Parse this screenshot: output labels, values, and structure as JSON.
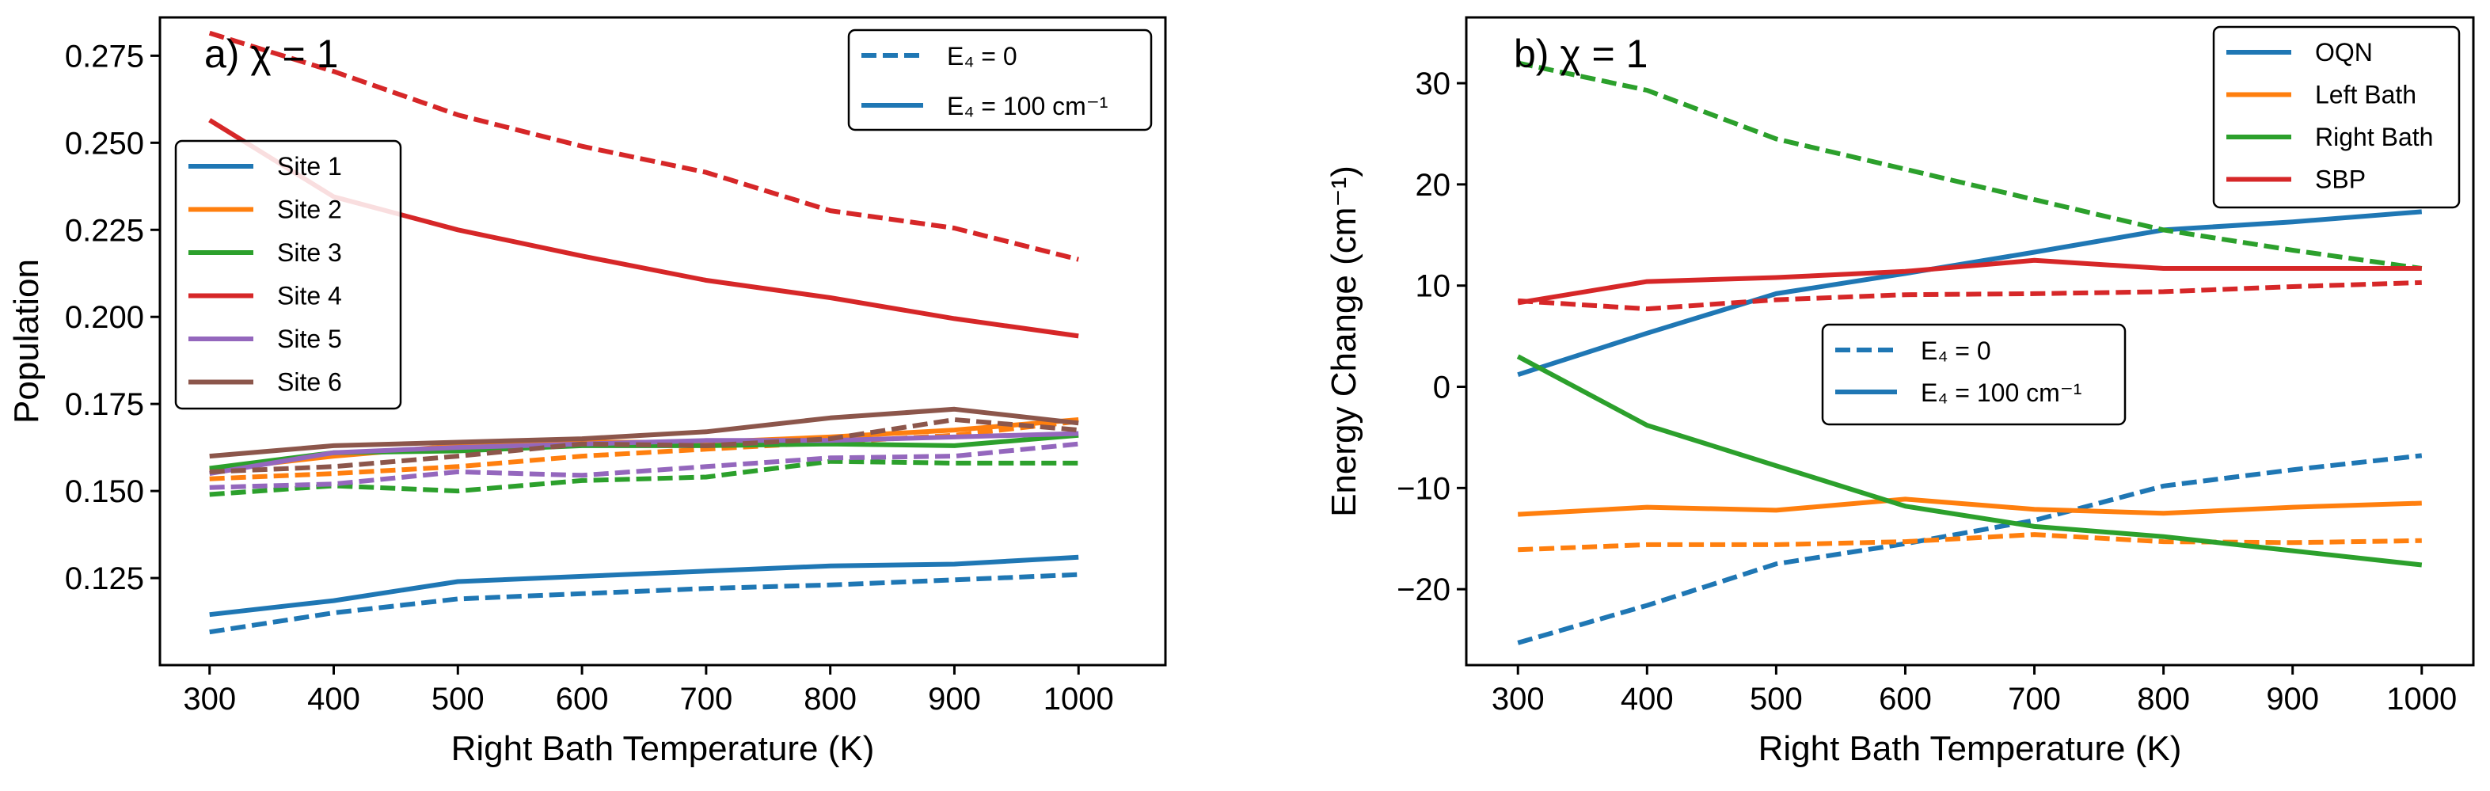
{
  "chart_data": [
    {
      "id": "a",
      "type": "line",
      "panel_title": "a) χ = 1",
      "xlabel": "Right Bath Temperature (K)",
      "ylabel": "Population",
      "xlim": [
        260,
        1070
      ],
      "ylim": [
        0.1,
        0.286
      ],
      "xticks": [
        300,
        400,
        500,
        600,
        700,
        800,
        900,
        1000
      ],
      "yticks": [
        0.125,
        0.15,
        0.175,
        0.2,
        0.225,
        0.25,
        0.275
      ],
      "ytick_labels": [
        "0.125",
        "0.150",
        "0.175",
        "0.200",
        "0.225",
        "0.250",
        "0.275"
      ],
      "x": [
        300,
        400,
        500,
        600,
        700,
        800,
        900,
        1000
      ],
      "series": [
        {
          "name": "Site 1",
          "color": "#1f77b4",
          "solid": [
            0.1145,
            0.1185,
            0.124,
            0.1255,
            0.127,
            0.1285,
            0.129,
            0.131
          ],
          "dashed": [
            0.1095,
            0.115,
            0.119,
            0.1205,
            0.122,
            0.123,
            0.1245,
            0.126
          ]
        },
        {
          "name": "Site 2",
          "color": "#ff7f0e",
          "solid": [
            0.156,
            0.16,
            0.163,
            0.164,
            0.164,
            0.1655,
            0.1675,
            0.1705
          ],
          "dashed": [
            0.1535,
            0.155,
            0.157,
            0.16,
            0.162,
            0.164,
            0.166,
            0.17
          ]
        },
        {
          "name": "Site 3",
          "color": "#2ca02c",
          "solid": [
            0.1565,
            0.161,
            0.1615,
            0.163,
            0.163,
            0.1635,
            0.163,
            0.166
          ],
          "dashed": [
            0.149,
            0.1515,
            0.15,
            0.153,
            0.154,
            0.1585,
            0.158,
            0.158
          ]
        },
        {
          "name": "Site 4",
          "color": "#d62728",
          "solid": [
            0.2565,
            0.2345,
            0.225,
            0.2175,
            0.2105,
            0.2055,
            0.1995,
            0.1945
          ],
          "dashed": [
            0.2815,
            0.2705,
            0.258,
            0.249,
            0.2415,
            0.2305,
            0.2255,
            0.2165
          ]
        },
        {
          "name": "Site 5",
          "color": "#9467bd",
          "solid": [
            0.155,
            0.161,
            0.1625,
            0.1635,
            0.1645,
            0.1645,
            0.1655,
            0.1665
          ],
          "dashed": [
            0.151,
            0.152,
            0.1555,
            0.1545,
            0.157,
            0.1595,
            0.16,
            0.1635
          ]
        },
        {
          "name": "Site 6",
          "color": "#8c564b",
          "solid": [
            0.16,
            0.163,
            0.164,
            0.165,
            0.167,
            0.171,
            0.1735,
            0.1695
          ],
          "dashed": [
            0.1555,
            0.157,
            0.16,
            0.1635,
            0.163,
            0.165,
            0.1705,
            0.1675
          ]
        }
      ],
      "series_legend": {
        "position": "middle-left",
        "entries": [
          "Site 1",
          "Site 2",
          "Site 3",
          "Site 4",
          "Site 5",
          "Site 6"
        ]
      },
      "style_legend": {
        "position": "top-right",
        "dashed_label": "E₄ = 0",
        "solid_label": "E₄ = 100 cm⁻¹"
      }
    },
    {
      "id": "b",
      "type": "line",
      "panel_title": "b) χ = 1",
      "xlabel": "Right Bath Temperature (K)",
      "ylabel": "Energy Change (cm⁻¹)",
      "xlim": [
        260,
        1040
      ],
      "ylim": [
        -27.5,
        36.5
      ],
      "xticks": [
        300,
        400,
        500,
        600,
        700,
        800,
        900,
        1000
      ],
      "yticks": [
        -20,
        -10,
        0,
        10,
        20,
        30
      ],
      "ytick_labels": [
        "−20",
        "−10",
        "0",
        "10",
        "20",
        "30"
      ],
      "x": [
        300,
        400,
        500,
        600,
        700,
        800,
        900,
        1000
      ],
      "series": [
        {
          "name": "OQN",
          "color": "#1f77b4",
          "solid": [
            1.2,
            5.3,
            9.2,
            11.2,
            13.3,
            15.5,
            16.3,
            17.3
          ],
          "dashed": [
            -25.3,
            -21.6,
            -17.5,
            -15.5,
            -13.2,
            -9.8,
            -8.2,
            -6.8
          ]
        },
        {
          "name": "Left Bath",
          "color": "#ff7f0e",
          "solid": [
            -12.6,
            -11.9,
            -12.2,
            -11.1,
            -12.1,
            -12.5,
            -11.9,
            -11.5
          ]
        },
        {
          "name": "Left Bath dashed",
          "color": "#ff7f0e",
          "dashed": [
            -16.1,
            -15.6,
            -15.6,
            -15.3,
            -14.6,
            -15.3,
            -15.4,
            -15.2
          ]
        },
        {
          "name": "Right Bath",
          "color": "#2ca02c",
          "solid": [
            3.0,
            -3.8,
            -7.8,
            -11.8,
            -13.8,
            -14.8,
            -16.2,
            -17.6
          ],
          "dashed": [
            32.0,
            29.3,
            24.5,
            21.5,
            18.5,
            15.5,
            13.5,
            11.7
          ]
        },
        {
          "name": "SBP",
          "color": "#d62728",
          "solid": [
            8.3,
            10.4,
            10.8,
            11.4,
            12.5,
            11.7,
            11.7,
            11.7
          ],
          "dashed": [
            8.5,
            7.7,
            8.6,
            9.1,
            9.2,
            9.4,
            9.9,
            10.3
          ]
        }
      ],
      "series_legend": {
        "position": "top-right",
        "entries": [
          "OQN",
          "Left Bath",
          "Right Bath",
          "SBP"
        ]
      },
      "style_legend": {
        "position": "center",
        "dashed_label": "E₄ = 0",
        "solid_label": "E₄ = 100 cm⁻¹"
      }
    }
  ]
}
